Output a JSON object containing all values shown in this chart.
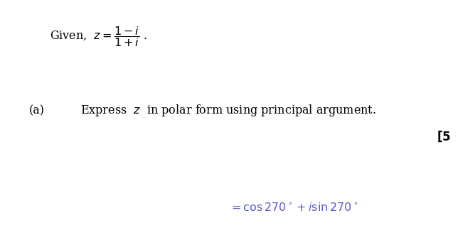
{
  "background_color": "#ffffff",
  "fig_width": 6.44,
  "fig_height": 3.31,
  "dpi": 100,
  "text_color": "#000000",
  "answer_color": "#5b5bcd",
  "font_size_main": 11.5,
  "font_size_answer": 11.5,
  "font_size_marks": 12
}
